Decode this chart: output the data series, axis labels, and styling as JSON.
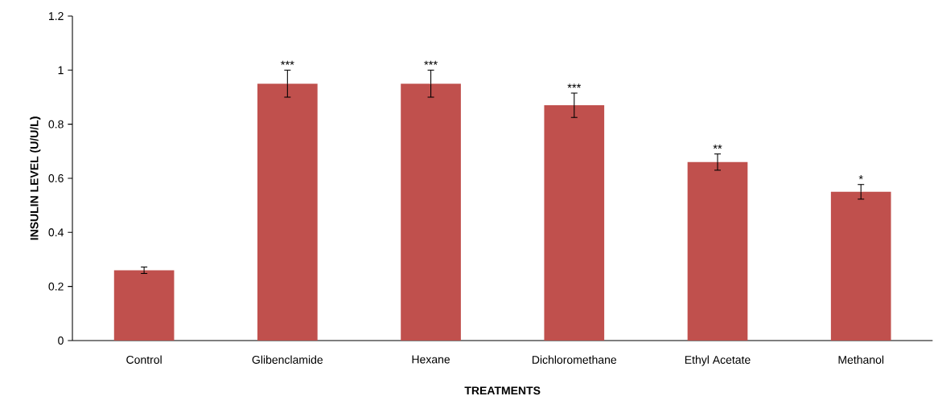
{
  "chart_data": {
    "type": "bar",
    "xlabel": "TREATMENTS",
    "ylabel": "INSULIN LEVEL (U/U/L)",
    "categories": [
      "Control",
      "Glibenclamide",
      "Hexane",
      "Dichloromethane",
      "Ethyl Acetate",
      "Methanol"
    ],
    "values": [
      0.26,
      0.95,
      0.95,
      0.87,
      0.66,
      0.55
    ],
    "errors": [
      0.012,
      0.05,
      0.05,
      0.045,
      0.03,
      0.027
    ],
    "color": "#c0504d",
    "ylim": [
      0,
      1.2
    ],
    "yticks": [
      0,
      0.2,
      0.4,
      0.6,
      0.8,
      1,
      1.2
    ],
    "grid": false,
    "annotations": [
      {
        "text": "***",
        "x": "Glibenclamide",
        "y": 1.0
      },
      {
        "text": "***",
        "x": "Hexane",
        "y": 1.0
      },
      {
        "text": "***",
        "x": "Dichloromethane",
        "y": 0.915
      },
      {
        "text": "**",
        "x": "Ethyl Acetate",
        "y": 0.69
      },
      {
        "text": "*",
        "x": "Methanol",
        "y": 0.577
      }
    ]
  }
}
